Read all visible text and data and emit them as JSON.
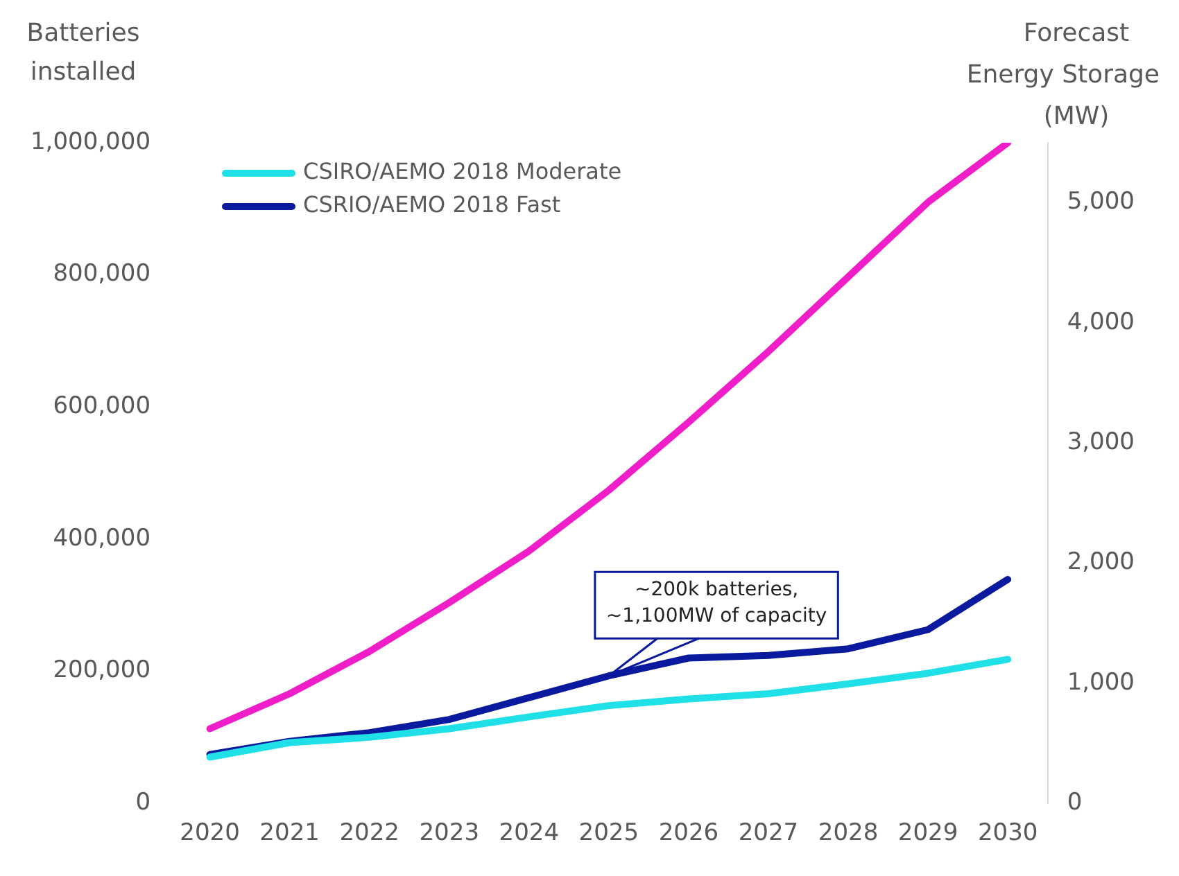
{
  "chart_data": {
    "type": "line",
    "categories": [
      "2020",
      "2021",
      "2022",
      "2023",
      "2024",
      "2025",
      "2026",
      "2027",
      "2028",
      "2029",
      "2030"
    ],
    "ylabel": "Batteries\ninstalled",
    "y2label": "Forecast\nEnergy Storage\n(MW)",
    "ylim": [
      0,
      1000000
    ],
    "yticks": [
      {
        "value": 0,
        "label": "0"
      },
      {
        "value": 200000,
        "label": "200,000"
      },
      {
        "value": 400000,
        "label": "400,000"
      },
      {
        "value": 600000,
        "label": "600,000"
      },
      {
        "value": 800000,
        "label": "800,000"
      },
      {
        "value": 1000000,
        "label": "1,000,000"
      }
    ],
    "y2lim": [
      0,
      5500
    ],
    "y2ticks": [
      {
        "value": 0,
        "label": "0"
      },
      {
        "value": 1000,
        "label": "1,000"
      },
      {
        "value": 2000,
        "label": "2,000"
      },
      {
        "value": 3000,
        "label": "3,000"
      },
      {
        "value": 4000,
        "label": "4,000"
      },
      {
        "value": 5000,
        "label": "5,000"
      }
    ],
    "series": [
      {
        "name": "CSIRO/AEMO 2018 Moderate",
        "color": "#1ee0e6",
        "values": [
          70000,
          92000,
          100000,
          113000,
          131000,
          148000,
          158000,
          166000,
          181000,
          197000,
          218000
        ]
      },
      {
        "name": "CSRIO/AEMO 2018 Fast",
        "color": "#0a1a9e",
        "values": [
          74000,
          94000,
          107000,
          127000,
          160000,
          193000,
          220000,
          224000,
          234000,
          263000,
          339000
        ]
      },
      {
        "color": "#f01ec8",
        "values": [
          113000,
          166000,
          230000,
          304000,
          382000,
          474000,
          577000,
          684000,
          797000,
          910000,
          1000000
        ]
      }
    ],
    "annotations": [
      {
        "text": "~200k batteries,\n~1,100MW of capacity",
        "x": "2025",
        "y": 193000
      }
    ],
    "legend": "top left",
    "grid": false,
    "marker": "none",
    "line_style": "solid"
  }
}
